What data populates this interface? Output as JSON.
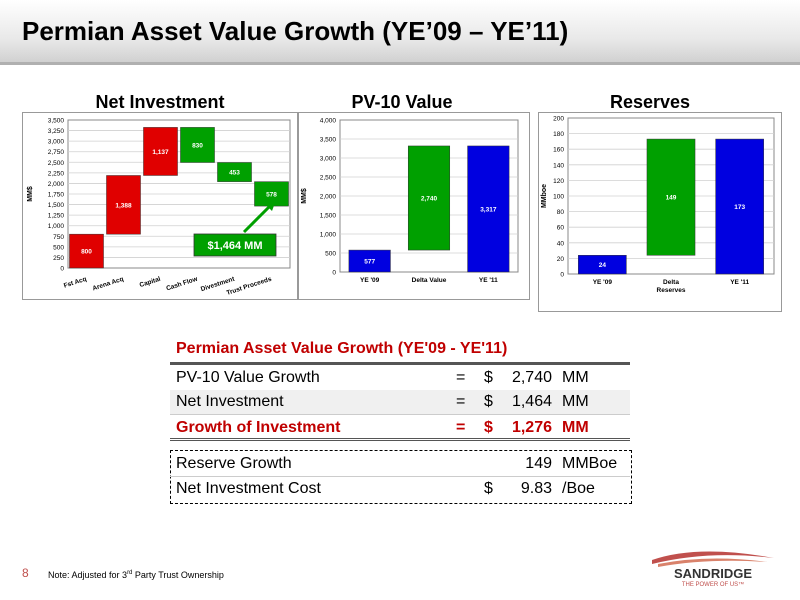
{
  "page": {
    "title": "Permian Asset Value Growth (YE’09 – YE’11)",
    "page_number": "8",
    "note_prefix": "Note:  Adjusted for 3",
    "note_sup": "rd",
    "note_suffix": " Party Trust Ownership"
  },
  "logo": {
    "name": "SandRidge",
    "tagline": "THE POWER OF US"
  },
  "chart_data": [
    {
      "type": "bar",
      "subtype": "waterfall",
      "title": "Net Investment",
      "ylabel": "MM$",
      "ylim": [
        0,
        3500
      ],
      "yticks": [
        "0",
        "250",
        "500",
        "750",
        "1,000",
        "1,250",
        "1,500",
        "1,750",
        "2,000",
        "2,250",
        "2,500",
        "2,750",
        "3,000",
        "3,250",
        "3,500"
      ],
      "categories": [
        "Fst Acq",
        "Arena Acq",
        "Capital",
        "Cash Flow",
        "Divestment",
        "Trust Proceeds"
      ],
      "values": [
        800,
        1388,
        1137,
        830,
        453,
        578
      ],
      "labels": [
        "800",
        "1,388",
        "1,137",
        "830",
        "453",
        "578"
      ],
      "colors": [
        "#e00000",
        "#e00000",
        "#e00000",
        "#00a000",
        "#00a000",
        "#00a000"
      ],
      "callout": "$1,464 MM",
      "grid": true
    },
    {
      "type": "bar",
      "subtype": "waterfall",
      "title": "PV-10 Value",
      "ylabel": "MM$",
      "ylim": [
        0,
        4000
      ],
      "yticks": [
        "0",
        "500",
        "1,000",
        "1,500",
        "2,000",
        "2,500",
        "3,000",
        "3,500",
        "4,000"
      ],
      "categories": [
        "YE '09",
        "Delta Value",
        "YE '11"
      ],
      "values": [
        577,
        2740,
        3317
      ],
      "labels": [
        "577",
        "2,740",
        "3,317"
      ],
      "colors": [
        "#0000e0",
        "#00a000",
        "#0000e0"
      ],
      "grid": true
    },
    {
      "type": "bar",
      "subtype": "waterfall",
      "title": "Reserves",
      "ylabel": "MMboe",
      "ylim": [
        0,
        200
      ],
      "yticks": [
        "0",
        "20",
        "40",
        "60",
        "80",
        "100",
        "120",
        "140",
        "160",
        "180",
        "200"
      ],
      "categories": [
        "YE '09",
        "Delta Reserves",
        "YE '11"
      ],
      "values": [
        24,
        149,
        173
      ],
      "labels": [
        "24",
        "149",
        "173"
      ],
      "colors": [
        "#0000e0",
        "#00a000",
        "#0000e0"
      ],
      "grid": true
    }
  ],
  "summary": {
    "title": "Permian Asset Value Growth (YE'09 - YE'11)",
    "rows": [
      {
        "label": "PV-10 Value Growth",
        "eq": "=",
        "cur": "$",
        "value": "2,740",
        "unit": "MM"
      },
      {
        "label": "Net Investment",
        "eq": "=",
        "cur": "$",
        "value": "1,464",
        "unit": "MM"
      },
      {
        "label": "Growth of Investment",
        "eq": "=",
        "cur": "$",
        "value": "1,276",
        "unit": "MM"
      }
    ],
    "rows2": [
      {
        "label": "Reserve Growth",
        "cur": "",
        "value": "149",
        "unit": "MMBoe"
      },
      {
        "label": "Net Investment Cost",
        "cur": "$",
        "value": "9.83",
        "unit": "/Boe"
      }
    ]
  }
}
